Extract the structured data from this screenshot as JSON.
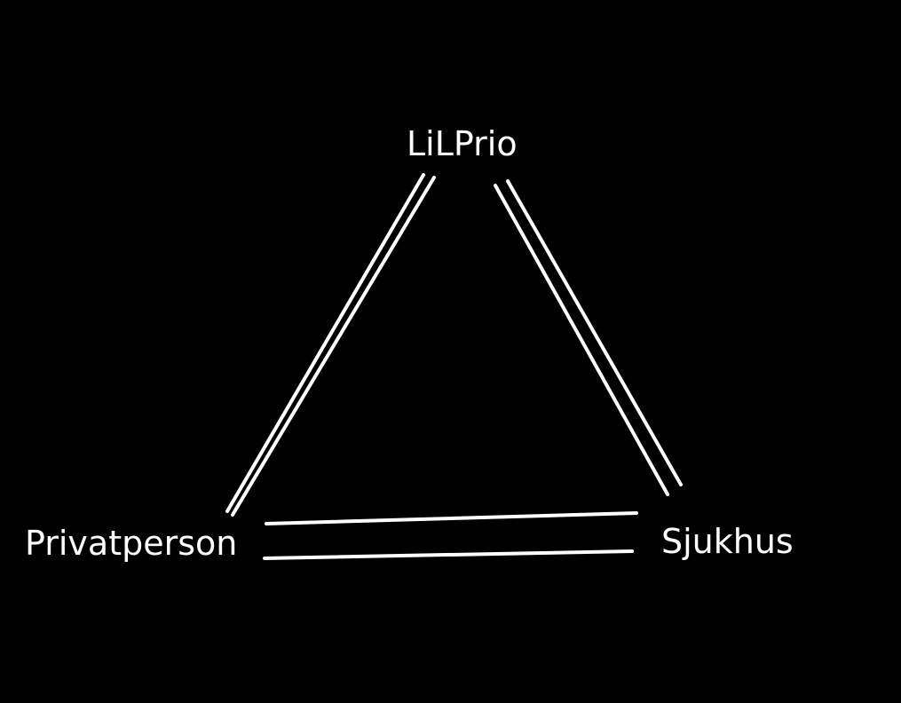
{
  "diagram": {
    "background_color": "#000000",
    "foreground_color": "#ffffff",
    "nodes": [
      {
        "id": "lilprio",
        "label": "LiLPrio"
      },
      {
        "id": "privatperson",
        "label": "Privatperson"
      },
      {
        "id": "sjukhus",
        "label": "Sjukhus"
      }
    ],
    "edges": [
      {
        "from": "lilprio",
        "to": "privatperson",
        "style": "double-line"
      },
      {
        "from": "lilprio",
        "to": "sjukhus",
        "style": "double-line"
      },
      {
        "from": "privatperson",
        "to": "sjukhus",
        "style": "double-line"
      }
    ]
  }
}
